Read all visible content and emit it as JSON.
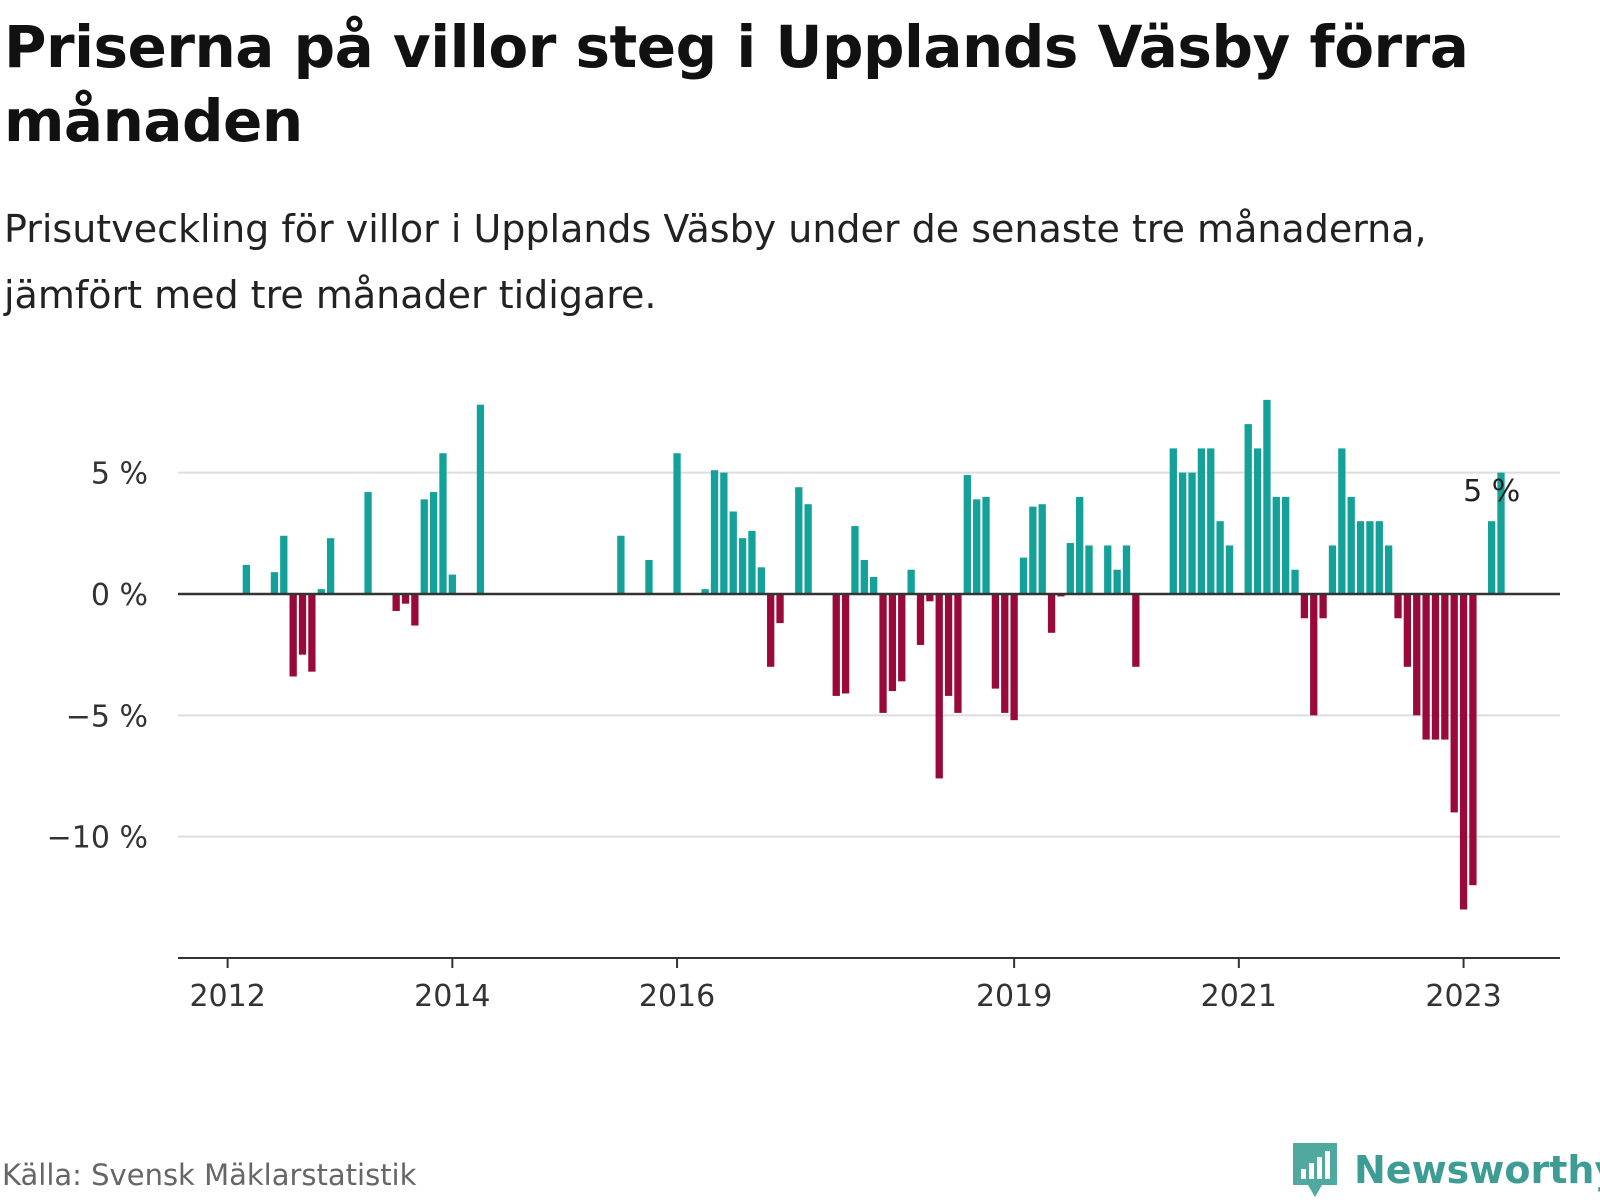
{
  "header": {
    "title": "Priserna på villor steg i Upplands Väsby förra månaden",
    "subtitle": "Prisutveckling för villor i Upplands Väsby under de senaste tre månaderna, jämfört med tre månader tidigare."
  },
  "footer": {
    "source": "Källa: Svensk Mäklarstatistik",
    "brand": "Newsworthy"
  },
  "colors": {
    "positive": "#13a19a",
    "negative": "#990a3b",
    "gridline": "#dddddd",
    "zeroline": "#333333",
    "brand": "#3d9c93"
  },
  "chart_data": {
    "type": "bar",
    "title": "Priserna på villor steg i Upplands Väsby förra månaden",
    "xlabel": "",
    "ylabel": "",
    "ylim": [
      -15,
      8.2
    ],
    "grid": true,
    "y_ticks": [
      {
        "value": 5,
        "label": "5 %"
      },
      {
        "value": 0,
        "label": "0 %"
      },
      {
        "value": -5,
        "label": "−5 %"
      },
      {
        "value": -10,
        "label": "−10 %"
      }
    ],
    "x_ticks": [
      {
        "index": 0,
        "label": "2012"
      },
      {
        "index": 24,
        "label": "2014"
      },
      {
        "index": 48,
        "label": "2016"
      },
      {
        "index": 84,
        "label": "2019"
      },
      {
        "index": 108,
        "label": "2021"
      },
      {
        "index": 132,
        "label": "2023"
      }
    ],
    "x_range": [
      -5.3,
      142.3
    ],
    "annotation": {
      "index": 135,
      "label": "5 %"
    },
    "values": [
      null,
      null,
      1.2,
      null,
      null,
      0.9,
      2.4,
      -3.4,
      -2.5,
      -3.2,
      0.2,
      2.3,
      null,
      null,
      null,
      4.2,
      null,
      null,
      -0.7,
      -0.4,
      -1.3,
      3.9,
      4.2,
      5.8,
      0.8,
      null,
      null,
      7.8,
      null,
      null,
      null,
      null,
      null,
      null,
      null,
      null,
      null,
      null,
      null,
      null,
      null,
      null,
      2.4,
      null,
      null,
      1.4,
      null,
      null,
      5.8,
      null,
      null,
      0.2,
      5.1,
      5.0,
      3.4,
      2.3,
      2.6,
      1.1,
      -3.0,
      -1.2,
      null,
      4.4,
      3.7,
      null,
      null,
      -4.2,
      -4.1,
      2.8,
      1.4,
      0.7,
      -4.9,
      -4.0,
      -3.6,
      1.0,
      -2.1,
      -0.3,
      -7.6,
      -4.2,
      -4.9,
      4.9,
      3.9,
      4.0,
      -3.9,
      -4.9,
      -5.2,
      1.5,
      3.6,
      3.7,
      -1.6,
      -0.1,
      2.1,
      4.0,
      2.0,
      null,
      2.0,
      1.0,
      2.0,
      -3.0,
      null,
      null,
      null,
      6.0,
      5.0,
      5.0,
      6.0,
      6.0,
      3.0,
      2.0,
      null,
      7.0,
      6.0,
      8.0,
      4.0,
      4.0,
      1.0,
      -1.0,
      -5.0,
      -1.0,
      2.0,
      6.0,
      4.0,
      3.0,
      3.0,
      3.0,
      2.0,
      -1.0,
      -3.0,
      -5.0,
      -6.0,
      -6.0,
      -6.0,
      -9.0,
      -13.0,
      -12.0,
      null,
      3.0,
      5.0
    ]
  }
}
